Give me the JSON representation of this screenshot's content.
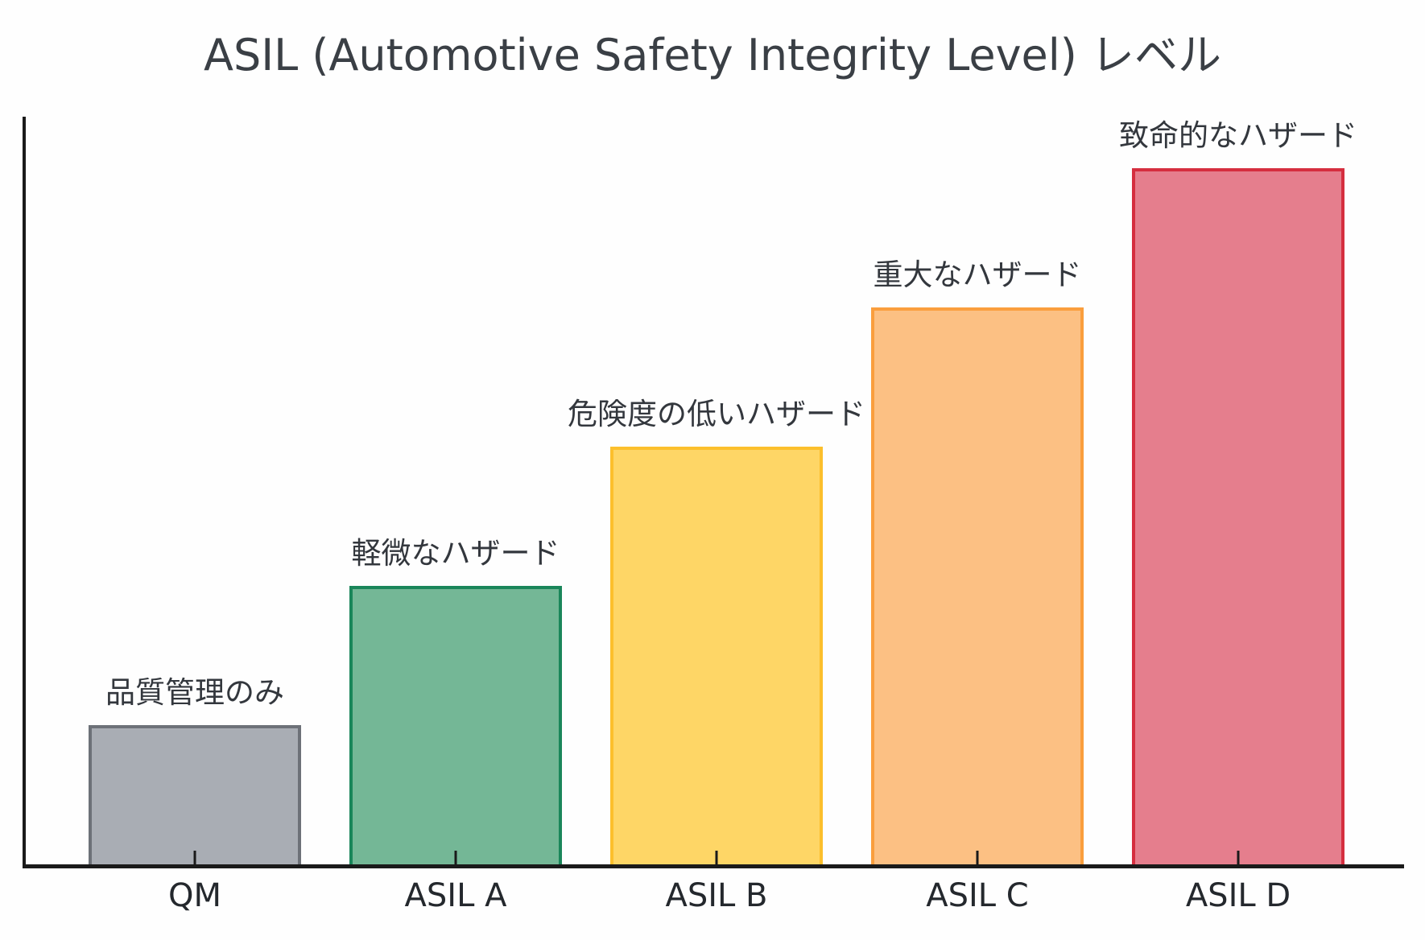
{
  "title": "ASIL (Automotive Safety Integrity Level) レベル",
  "chart_data": {
    "type": "bar",
    "title": "ASIL (Automotive Safety Integrity Level) レベル",
    "categories": [
      "QM",
      "ASIL A",
      "ASIL B",
      "ASIL C",
      "ASIL D"
    ],
    "values": [
      1,
      2,
      3,
      4,
      5
    ],
    "bar_annotations": [
      "品質管理のみ",
      "軽微なハザード",
      "危険度の低いハザード",
      "重大なハザード",
      "致命的なハザード"
    ],
    "xlabel": "",
    "ylabel": "",
    "ylim": [
      0,
      5.37
    ],
    "grid": false,
    "legend": "none",
    "y_axis_tick_labels": "none",
    "tick_direction": "in",
    "bar_fill_colors": [
      "#a9adb4",
      "#74b796",
      "#fed666",
      "#fcc083",
      "#e57e8d"
    ],
    "bar_edge_colors": [
      "#6d7178",
      "#1a865a",
      "#fcbf2c",
      "#fa9e3d",
      "#d52e3f"
    ],
    "axis_color": "#1a1a1a",
    "text_color": "#33373d"
  }
}
